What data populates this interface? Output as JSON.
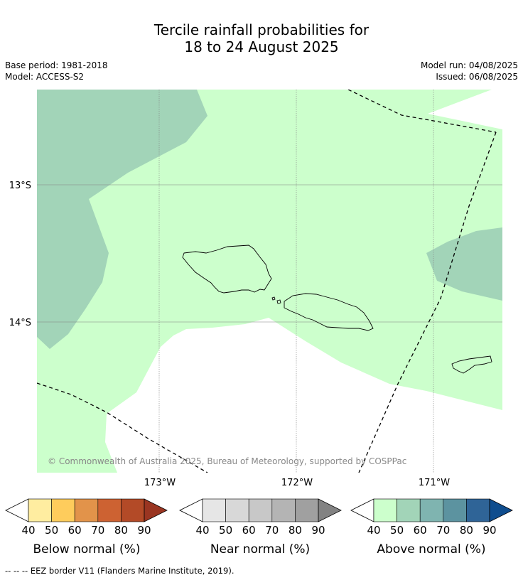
{
  "title": {
    "line1": "Tercile rainfall probabilities for",
    "line2": "18 to 24 August 2025"
  },
  "meta": {
    "base_period": "Base period: 1981-2018",
    "model": "Model: ACCESS-S2",
    "model_run": "Model run: 04/08/2025",
    "issued": "Issued: 06/08/2025"
  },
  "map": {
    "lat_labels": [
      "13°S",
      "14°S"
    ],
    "lon_labels": [
      "173°W",
      "172°W",
      "171°W"
    ],
    "copyright": "© Commonwealth of Australia 2025, Bureau of Meteorology, supported by COSPPac"
  },
  "legends": [
    {
      "name": "below",
      "label": "Below normal (%)",
      "ticks": [
        "40",
        "50",
        "60",
        "70",
        "80",
        "90"
      ],
      "low_color": "#ffffff",
      "colors": [
        "#ffeda0",
        "#fecc5c",
        "#e2934a",
        "#cd6232",
        "#b34a27"
      ],
      "high_color": "#9a3521"
    },
    {
      "name": "near",
      "label": "Near normal (%)",
      "ticks": [
        "40",
        "50",
        "60",
        "70",
        "80",
        "90"
      ],
      "low_color": "#ffffff",
      "colors": [
        "#e6e6e6",
        "#d8d8d8",
        "#c8c8c8",
        "#b4b4b4",
        "#a0a0a0"
      ],
      "high_color": "#828282"
    },
    {
      "name": "above",
      "label": "Above normal (%)",
      "ticks": [
        "40",
        "50",
        "60",
        "70",
        "80",
        "90"
      ],
      "low_color": "#ffffff",
      "colors": [
        "#ccffcc",
        "#a2d4b8",
        "#7fb4b0",
        "#5c93a0",
        "#2f6497"
      ],
      "high_color": "#0f4d8e"
    }
  ],
  "colors": {
    "above_40_50": "#ccffcc",
    "above_50_60": "#a2d4b8",
    "grid": "#808080",
    "eez_border": "#000000"
  },
  "footer": "--  --  -- EEZ border V11 (Flanders Marine Institute, 2019)."
}
